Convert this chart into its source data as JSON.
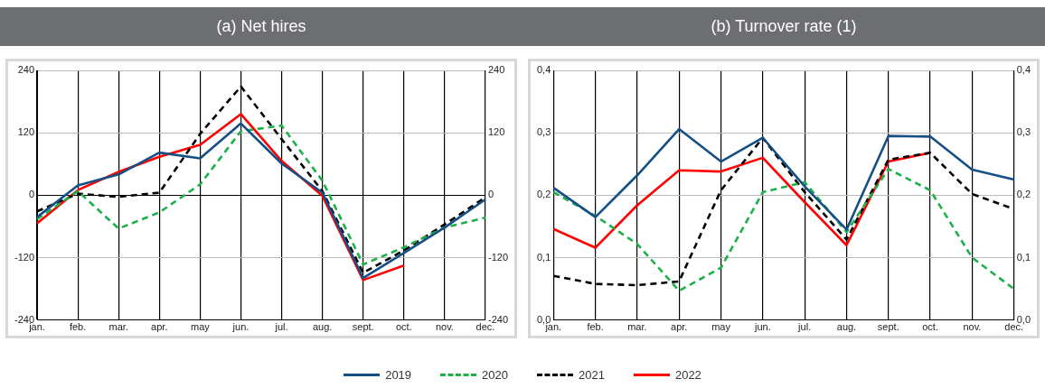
{
  "chart_data": [
    {
      "type": "line",
      "title": "(a) Net hires",
      "categories": [
        "jan.",
        "feb.",
        "mar.",
        "apr.",
        "may",
        "jun.",
        "jul.",
        "aug.",
        "sept.",
        "oct.",
        "nov.",
        "dec."
      ],
      "series": [
        {
          "name": "2019",
          "color": "#144f85",
          "line_style": "solid",
          "values": [
            -42,
            19,
            40,
            82,
            71,
            138,
            61,
            5,
            -159,
            -111,
            -62,
            -8
          ]
        },
        {
          "name": "2020",
          "color": "#1db04a",
          "line_style": "dashed",
          "values": [
            -46,
            8,
            -64,
            -33,
            21,
            123,
            134,
            28,
            -133,
            -100,
            -62,
            -43
          ]
        },
        {
          "name": "2021",
          "color": "#000000",
          "line_style": "dashed",
          "values": [
            -31,
            3,
            -3,
            5,
            118,
            209,
            108,
            8,
            -149,
            -106,
            -56,
            -4
          ]
        },
        {
          "name": "2022",
          "color": "#ff0000",
          "line_style": "solid",
          "values": [
            -54,
            10,
            45,
            74,
            97,
            156,
            66,
            -1,
            -163,
            -135,
            null,
            null
          ]
        }
      ],
      "ylim": [
        -240,
        240
      ],
      "yticks": [
        -240,
        -120,
        0,
        120,
        240
      ],
      "y2lim": [
        -240,
        240
      ],
      "y2ticks": [
        -240,
        -120,
        0,
        120,
        240
      ],
      "grid": true,
      "legend": "bottom",
      "marker": "none"
    },
    {
      "type": "line",
      "title": "(b) Turnover rate (1)",
      "categories": [
        "jan.",
        "feb.",
        "mar.",
        "apr.",
        "may",
        "jun.",
        "jul.",
        "aug.",
        "sept.",
        "oct.",
        "nov.",
        "dec."
      ],
      "series": [
        {
          "name": "2019",
          "color": "#144f85",
          "line_style": "solid",
          "values": [
            0.212,
            0.165,
            0.232,
            0.306,
            0.254,
            0.292,
            0.214,
            0.145,
            0.295,
            0.294,
            0.241,
            0.225
          ]
        },
        {
          "name": "2020",
          "color": "#1db04a",
          "line_style": "dashed",
          "values": [
            0.205,
            0.167,
            0.122,
            0.047,
            0.084,
            0.205,
            0.221,
            0.141,
            0.242,
            0.208,
            0.1,
            0.05
          ]
        },
        {
          "name": "2021",
          "color": "#000000",
          "line_style": "dashed",
          "values": [
            0.071,
            0.058,
            0.056,
            0.062,
            0.208,
            0.292,
            0.205,
            0.129,
            0.257,
            0.268,
            0.202,
            0.178
          ]
        },
        {
          "name": "2022",
          "color": "#ff0000",
          "line_style": "solid",
          "values": [
            0.146,
            0.116,
            0.184,
            0.24,
            0.238,
            0.26,
            0.189,
            0.12,
            0.254,
            0.268,
            null,
            null
          ]
        }
      ],
      "ylim": [
        0,
        0.4
      ],
      "yticks": [
        {
          "value": 0,
          "label": "0,0"
        },
        {
          "value": 0.1,
          "label": "0,1"
        },
        {
          "value": 0.2,
          "label": "0,2"
        },
        {
          "value": 0.3,
          "label": "0,3"
        },
        {
          "value": 0.4,
          "label": "0,4"
        }
      ],
      "y2lim": [
        0,
        0.4
      ],
      "y2ticks": [
        {
          "value": 0,
          "label": "0,0"
        },
        {
          "value": 0.1,
          "label": "0,1"
        },
        {
          "value": 0.2,
          "label": "0,2"
        },
        {
          "value": 0.3,
          "label": "0,3"
        },
        {
          "value": 0.4,
          "label": "0,4"
        }
      ],
      "grid": true,
      "legend": "bottom",
      "marker": "none"
    }
  ]
}
